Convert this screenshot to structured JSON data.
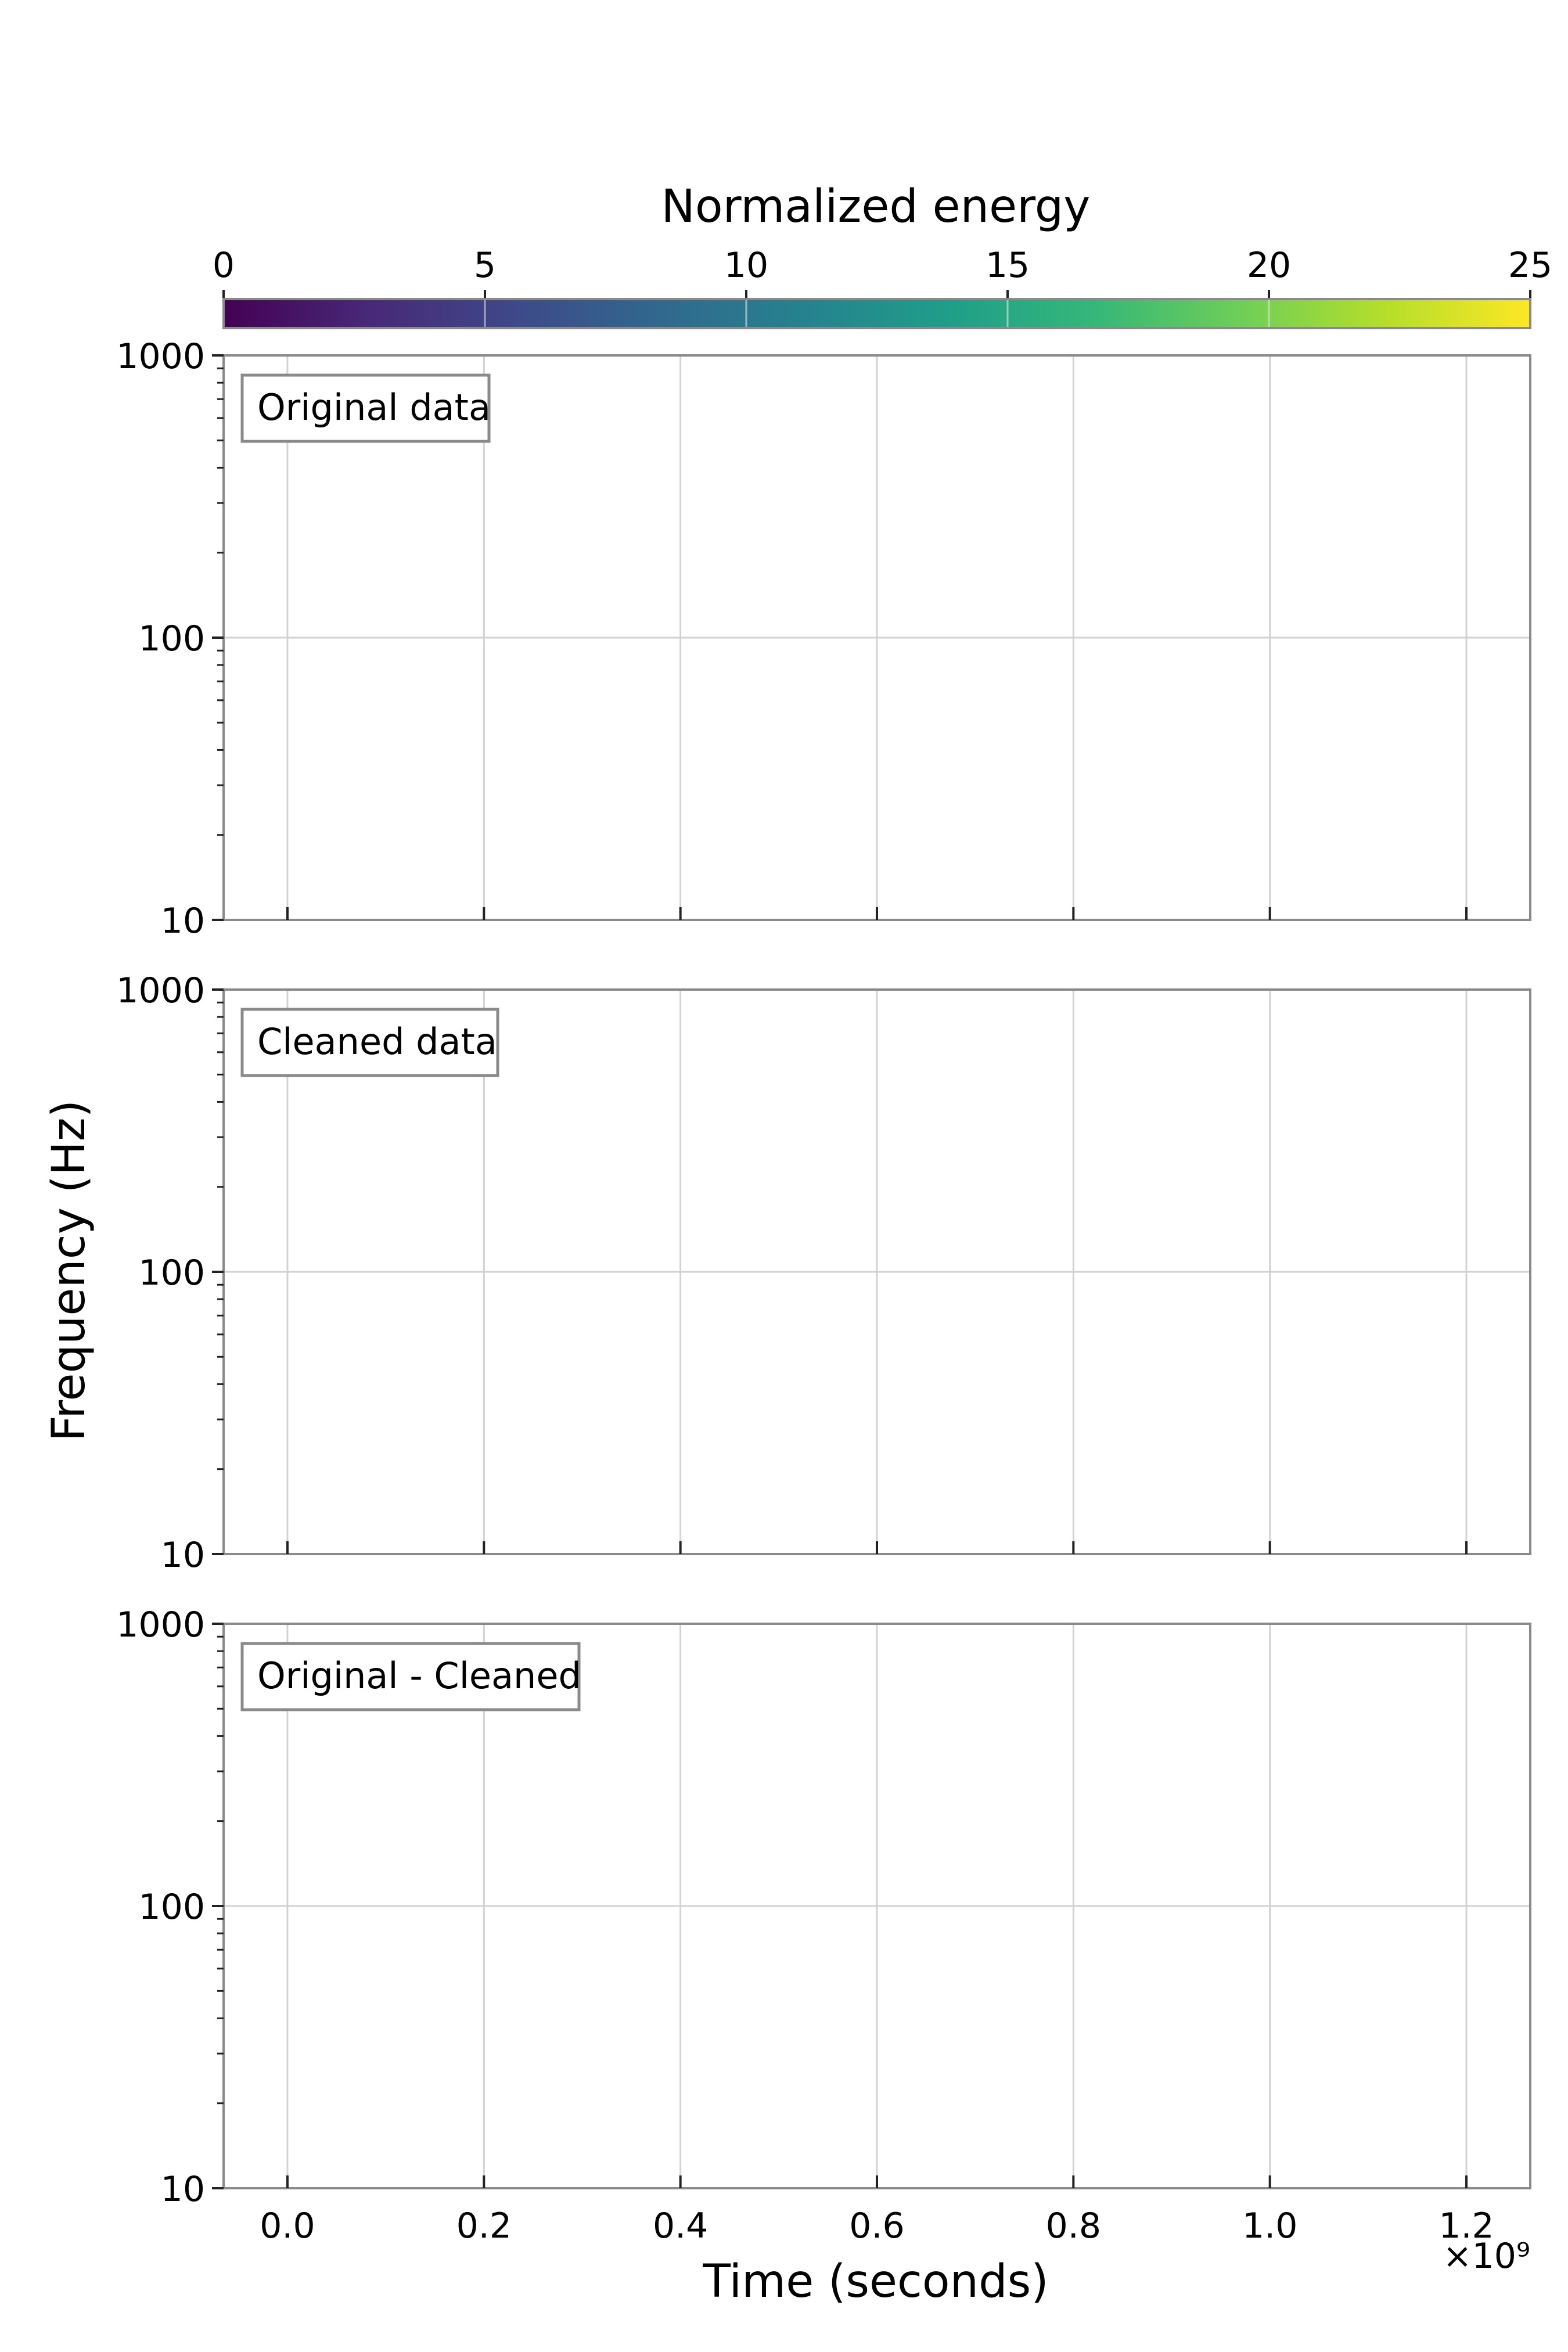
{
  "chart_data": [
    {
      "type": "colorbar",
      "title": "Normalized energy",
      "range": [
        0,
        25
      ],
      "ticks": [
        0,
        5,
        10,
        15,
        20,
        25
      ],
      "colormap": [
        "#440154",
        "#482878",
        "#3e4989",
        "#31688e",
        "#26828e",
        "#1f9e89",
        "#35b779",
        "#6ece58",
        "#b5de2b",
        "#fde725"
      ]
    },
    {
      "type": "heatmap",
      "label": "Original data",
      "xlim": [
        -0.065,
        1.265
      ],
      "ylim": [
        10,
        1000
      ],
      "yscale": "log",
      "grid": true,
      "values": []
    },
    {
      "type": "heatmap",
      "label": "Cleaned data",
      "xlim": [
        -0.065,
        1.265
      ],
      "ylim": [
        10,
        1000
      ],
      "yscale": "log",
      "grid": true,
      "values": []
    },
    {
      "type": "heatmap",
      "label": "Original - Cleaned",
      "xlim": [
        -0.065,
        1.265
      ],
      "ylim": [
        10,
        1000
      ],
      "yscale": "log",
      "grid": true,
      "values": []
    }
  ],
  "axes": {
    "ylabel": "Frequency (Hz)",
    "xlabel": "Time (seconds)",
    "x_multiplier": "×10⁹",
    "x_ticks": [
      0.0,
      0.2,
      0.4,
      0.6,
      0.8,
      1.0,
      1.2
    ],
    "x_tick_labels": [
      "0.0",
      "0.2",
      "0.4",
      "0.6",
      "0.8",
      "1.0",
      "1.2"
    ],
    "y_ticks": [
      10,
      100,
      1000
    ],
    "y_tick_labels": [
      "10",
      "100",
      "1000"
    ]
  }
}
